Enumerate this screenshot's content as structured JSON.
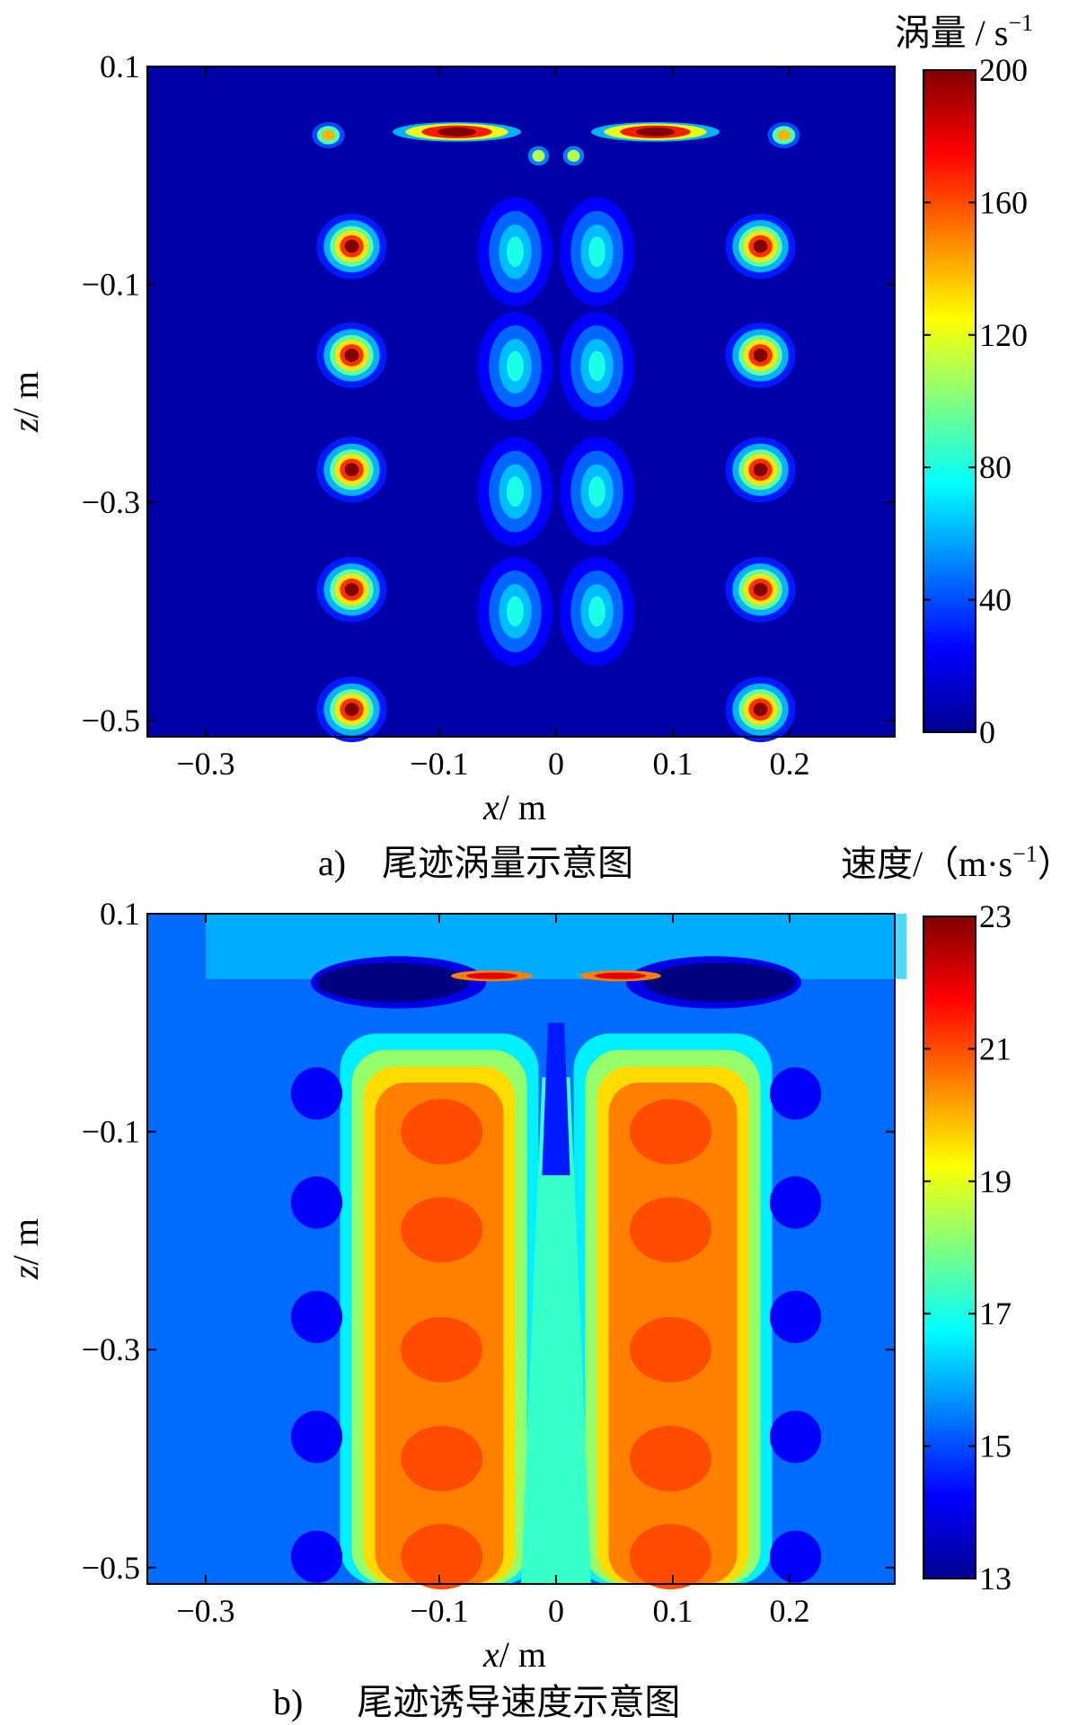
{
  "chart_data": [
    {
      "type": "heatmap",
      "panel_label": "a)",
      "caption": "尾迹涡量示意图",
      "colorbar_title": "涡量 / s",
      "colorbar_title_sup": "−1",
      "xlabel_var": "x",
      "xlabel_unit": "/ m",
      "ylabel_var": "z",
      "ylabel_unit": "/ m",
      "xlim": [
        -0.35,
        0.29
      ],
      "ylim": [
        -0.515,
        0.1
      ],
      "xticks": [
        -0.3,
        -0.1,
        0,
        0.1,
        0.2
      ],
      "xtick_labels": [
        "−0.3",
        "−0.1",
        "0",
        "0.1",
        "0.2"
      ],
      "yticks": [
        0.1,
        -0.1,
        -0.3,
        -0.5
      ],
      "ytick_labels": [
        "0.1",
        "−0.1",
        "−0.3",
        "−0.5"
      ],
      "clim": [
        0,
        200
      ],
      "cticks": [
        0,
        40,
        80,
        120,
        160,
        200
      ],
      "ctick_labels": [
        "0",
        "40",
        "80",
        "120",
        "160",
        "200"
      ],
      "colormap": "jet",
      "background_value": 8,
      "tip_vortices_left_x": -0.175,
      "tip_vortices_right_x": 0.175,
      "tip_vortex_z": [
        -0.065,
        -0.165,
        -0.27,
        -0.38,
        -0.49
      ],
      "tip_vortex_peak": 200,
      "inner_vortex_x": [
        -0.035,
        0.035
      ],
      "inner_vortex_z": [
        -0.07,
        -0.175,
        -0.29,
        -0.4
      ],
      "inner_vortex_peak": 80,
      "rotor_plane_z": 0.04,
      "rotor_outer_spots_x": [
        -0.195,
        0.195
      ]
    },
    {
      "type": "heatmap",
      "panel_label": "b)",
      "caption": "尾迹诱导速度示意图",
      "colorbar_title": "速度/（m·s",
      "colorbar_title_sup": "−1",
      "colorbar_title_end": "）",
      "xlabel_var": "x",
      "xlabel_unit": "/ m",
      "ylabel_var": "z",
      "ylabel_unit": "/ m",
      "xlim": [
        -0.35,
        0.29
      ],
      "ylim": [
        -0.515,
        0.1
      ],
      "xticks": [
        -0.3,
        -0.1,
        0,
        0.1,
        0.2
      ],
      "xtick_labels": [
        "−0.3",
        "−0.1",
        "0",
        "0.1",
        "0.2"
      ],
      "yticks": [
        0.1,
        -0.1,
        -0.3,
        -0.5
      ],
      "ytick_labels": [
        "0.1",
        "−0.1",
        "−0.3",
        "−0.5"
      ],
      "clim": [
        13,
        23
      ],
      "cticks": [
        13,
        15,
        17,
        19,
        21,
        23
      ],
      "ctick_labels": [
        "13",
        "15",
        "17",
        "19",
        "21",
        "23"
      ],
      "colormap": "jet",
      "background_value": 15.3,
      "wake_core_value": 21,
      "wake_center_value": 17.3,
      "rotor_plane_low_value": 13
    }
  ]
}
